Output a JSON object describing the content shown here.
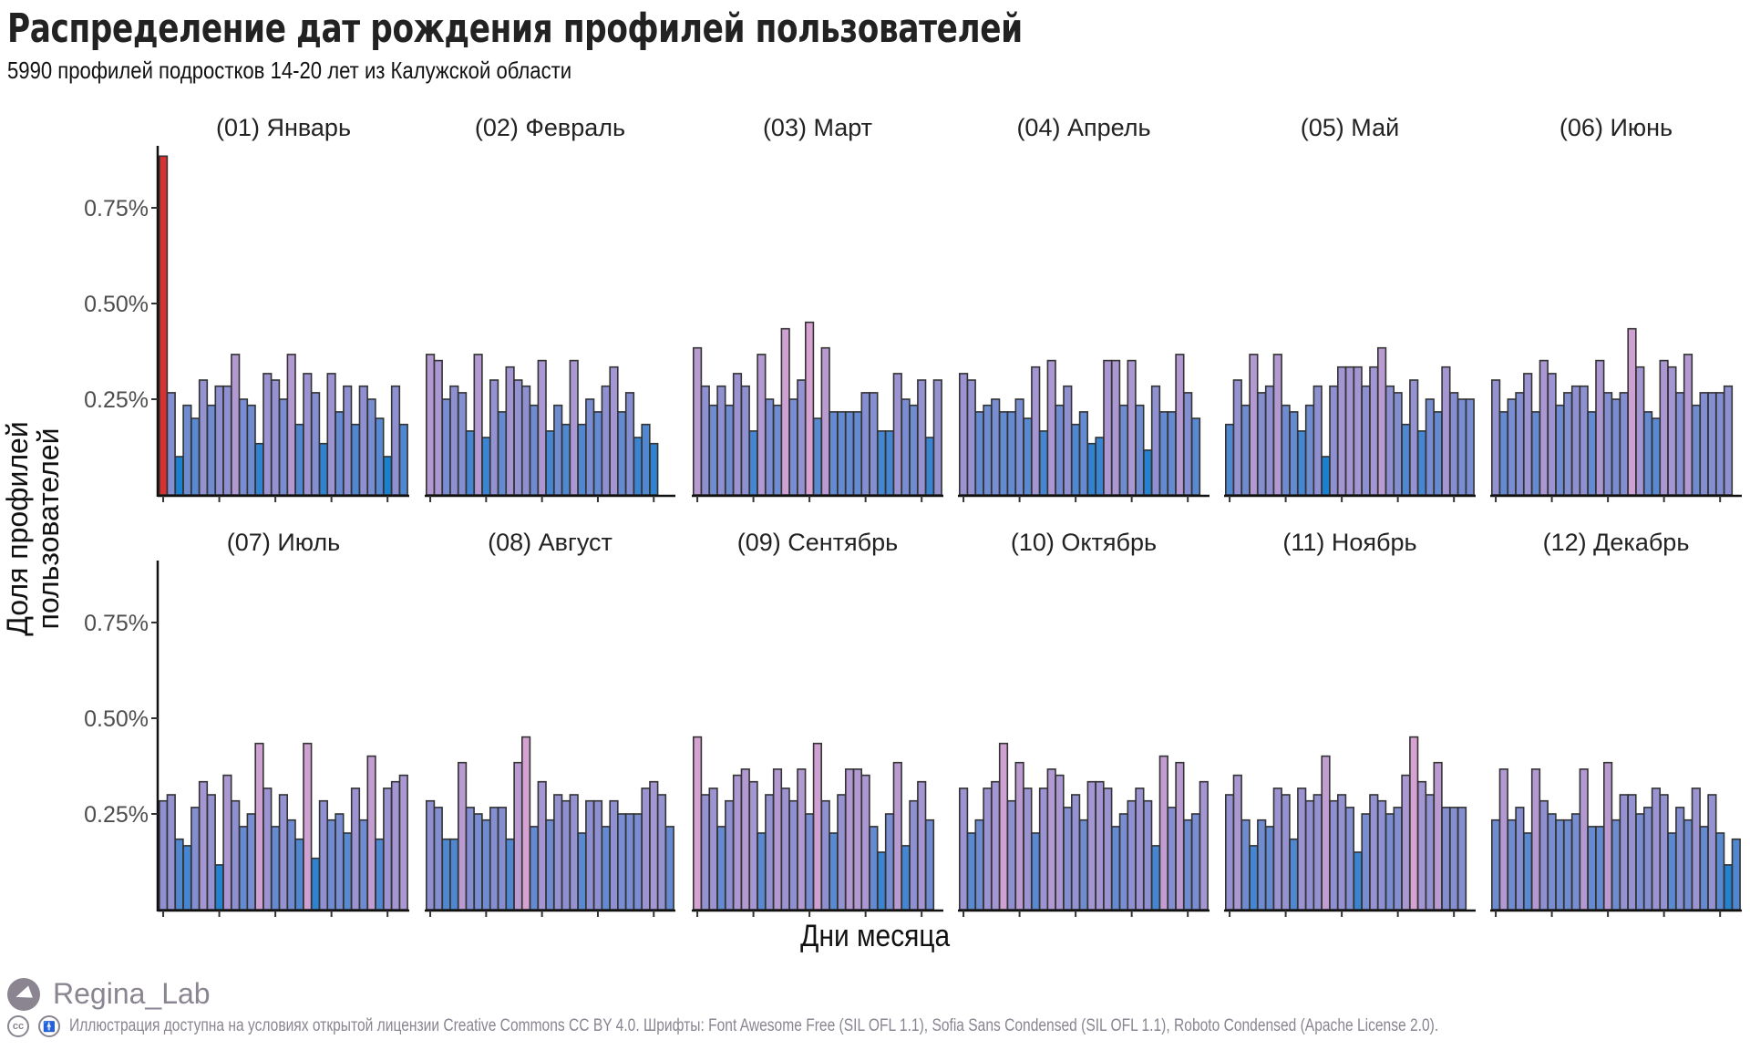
{
  "header": {
    "title": "Распределение дат рождения профилей пользователей",
    "subtitle": "5990 профилей подростков 14-20  лет из Калужской  области"
  },
  "footer": {
    "brand": "Regina_Lab",
    "brand_icon": "telegram-icon",
    "license_icons": [
      "creative-commons-icon",
      "attribution-icon"
    ],
    "license_text": "Иллюстрация доступна на  условиях открытой лицензии Creative Commons CC BY 4.0.  Шрифты: Font  Awesome Free (SIL OFL 1.1), Sofia Sans Condensed (SIL OFL 1.1), Roboto Condensed (Apache License 2.0)."
  },
  "colors": {
    "low": "#1a80d0",
    "mid": "#8c90d2",
    "high": "#d6a2d2",
    "outlier": "#d63232",
    "bar_outline": "#333333",
    "axis": "#111111"
  },
  "chart_data": {
    "type": "bar",
    "layout": "facet_wrap",
    "title": "Распределение дат рождения профилей пользователей",
    "subtitle": "5990 профилей подростков 14-20  лет из Калужской  области",
    "xlabel": "Дни месяца",
    "ylabel": "Доля профилей\nпользователей",
    "ylim": [
      0,
      0.9
    ],
    "yticks": [
      0.25,
      0.5,
      0.75
    ],
    "ytick_labels": [
      "0.25%",
      "0.50%",
      "0.75%"
    ],
    "xticks": [
      1,
      8,
      15,
      22,
      29
    ],
    "grid": false,
    "legend": "none",
    "unit": "percent",
    "highlight": {
      "facet": 0,
      "day": 1,
      "color": "outlier"
    },
    "facets": [
      {
        "label": "(01) Январь",
        "values": [
          0.885,
          0.267,
          0.1,
          0.234,
          0.2,
          0.3,
          0.234,
          0.284,
          0.284,
          0.367,
          0.25,
          0.234,
          0.134,
          0.317,
          0.3,
          0.25,
          0.367,
          0.184,
          0.317,
          0.267,
          0.134,
          0.317,
          0.217,
          0.284,
          0.184,
          0.284,
          0.25,
          0.2,
          0.1,
          0.284,
          0.184
        ]
      },
      {
        "label": "(02) Февраль",
        "values": [
          0.367,
          0.351,
          0.25,
          0.284,
          0.267,
          0.167,
          0.367,
          0.15,
          0.3,
          0.217,
          0.334,
          0.3,
          0.284,
          0.234,
          0.351,
          0.167,
          0.234,
          0.184,
          0.351,
          0.184,
          0.25,
          0.217,
          0.284,
          0.334,
          0.217,
          0.267,
          0.15,
          0.184,
          0.134
        ]
      },
      {
        "label": "(03) Март",
        "values": [
          0.384,
          0.284,
          0.234,
          0.284,
          0.234,
          0.317,
          0.284,
          0.167,
          0.367,
          0.25,
          0.234,
          0.434,
          0.25,
          0.3,
          0.451,
          0.2,
          0.384,
          0.217,
          0.217,
          0.217,
          0.217,
          0.267,
          0.267,
          0.167,
          0.167,
          0.317,
          0.25,
          0.234,
          0.3,
          0.15,
          0.3
        ]
      },
      {
        "label": "(04) Апрель",
        "values": [
          0.317,
          0.3,
          0.217,
          0.234,
          0.25,
          0.217,
          0.217,
          0.25,
          0.2,
          0.334,
          0.167,
          0.351,
          0.234,
          0.284,
          0.184,
          0.217,
          0.134,
          0.15,
          0.351,
          0.351,
          0.234,
          0.351,
          0.234,
          0.117,
          0.284,
          0.217,
          0.217,
          0.367,
          0.267,
          0.2
        ]
      },
      {
        "label": "(05) Май",
        "values": [
          0.184,
          0.3,
          0.234,
          0.367,
          0.267,
          0.284,
          0.367,
          0.234,
          0.217,
          0.167,
          0.234,
          0.284,
          0.1,
          0.284,
          0.334,
          0.334,
          0.334,
          0.284,
          0.334,
          0.384,
          0.284,
          0.267,
          0.184,
          0.3,
          0.167,
          0.25,
          0.217,
          0.334,
          0.267,
          0.25,
          0.25
        ]
      },
      {
        "label": "(06) Июнь",
        "values": [
          0.3,
          0.217,
          0.25,
          0.267,
          0.317,
          0.217,
          0.351,
          0.317,
          0.234,
          0.267,
          0.284,
          0.284,
          0.217,
          0.351,
          0.267,
          0.25,
          0.267,
          0.434,
          0.334,
          0.217,
          0.2,
          0.351,
          0.334,
          0.267,
          0.367,
          0.234,
          0.267,
          0.267,
          0.267,
          0.284
        ]
      },
      {
        "label": "(07) Июль",
        "values": [
          0.284,
          0.3,
          0.184,
          0.167,
          0.267,
          0.334,
          0.3,
          0.117,
          0.351,
          0.284,
          0.217,
          0.25,
          0.434,
          0.317,
          0.217,
          0.3,
          0.234,
          0.184,
          0.434,
          0.134,
          0.284,
          0.234,
          0.25,
          0.2,
          0.317,
          0.234,
          0.401,
          0.184,
          0.317,
          0.334,
          0.351
        ]
      },
      {
        "label": "(08) Август",
        "values": [
          0.284,
          0.267,
          0.184,
          0.184,
          0.384,
          0.267,
          0.25,
          0.234,
          0.267,
          0.267,
          0.184,
          0.384,
          0.451,
          0.217,
          0.334,
          0.234,
          0.3,
          0.284,
          0.3,
          0.2,
          0.284,
          0.284,
          0.217,
          0.284,
          0.25,
          0.25,
          0.25,
          0.317,
          0.334,
          0.3,
          0.217
        ]
      },
      {
        "label": "(09) Сентябрь",
        "values": [
          0.451,
          0.3,
          0.317,
          0.217,
          0.284,
          0.351,
          0.367,
          0.334,
          0.2,
          0.3,
          0.367,
          0.317,
          0.284,
          0.367,
          0.25,
          0.434,
          0.284,
          0.2,
          0.3,
          0.367,
          0.367,
          0.351,
          0.217,
          0.15,
          0.25,
          0.384,
          0.167,
          0.284,
          0.334,
          0.234
        ]
      },
      {
        "label": "(10) Октябрь",
        "values": [
          0.317,
          0.2,
          0.234,
          0.317,
          0.334,
          0.434,
          0.284,
          0.384,
          0.317,
          0.2,
          0.317,
          0.367,
          0.351,
          0.267,
          0.3,
          0.234,
          0.334,
          0.334,
          0.317,
          0.217,
          0.25,
          0.284,
          0.317,
          0.284,
          0.167,
          0.401,
          0.267,
          0.384,
          0.234,
          0.25,
          0.334
        ]
      },
      {
        "label": "(11) Ноябрь",
        "values": [
          0.3,
          0.351,
          0.234,
          0.167,
          0.234,
          0.217,
          0.317,
          0.3,
          0.184,
          0.317,
          0.284,
          0.3,
          0.401,
          0.284,
          0.3,
          0.267,
          0.15,
          0.25,
          0.3,
          0.284,
          0.25,
          0.267,
          0.351,
          0.451,
          0.334,
          0.3,
          0.384,
          0.267,
          0.267,
          0.267
        ]
      },
      {
        "label": "(12) Декабрь",
        "values": [
          0.234,
          0.367,
          0.234,
          0.267,
          0.2,
          0.367,
          0.284,
          0.25,
          0.234,
          0.234,
          0.25,
          0.367,
          0.217,
          0.217,
          0.384,
          0.234,
          0.3,
          0.3,
          0.25,
          0.267,
          0.317,
          0.3,
          0.2,
          0.267,
          0.234,
          0.317,
          0.217,
          0.3,
          0.2,
          0.117,
          0.184
        ]
      }
    ]
  }
}
